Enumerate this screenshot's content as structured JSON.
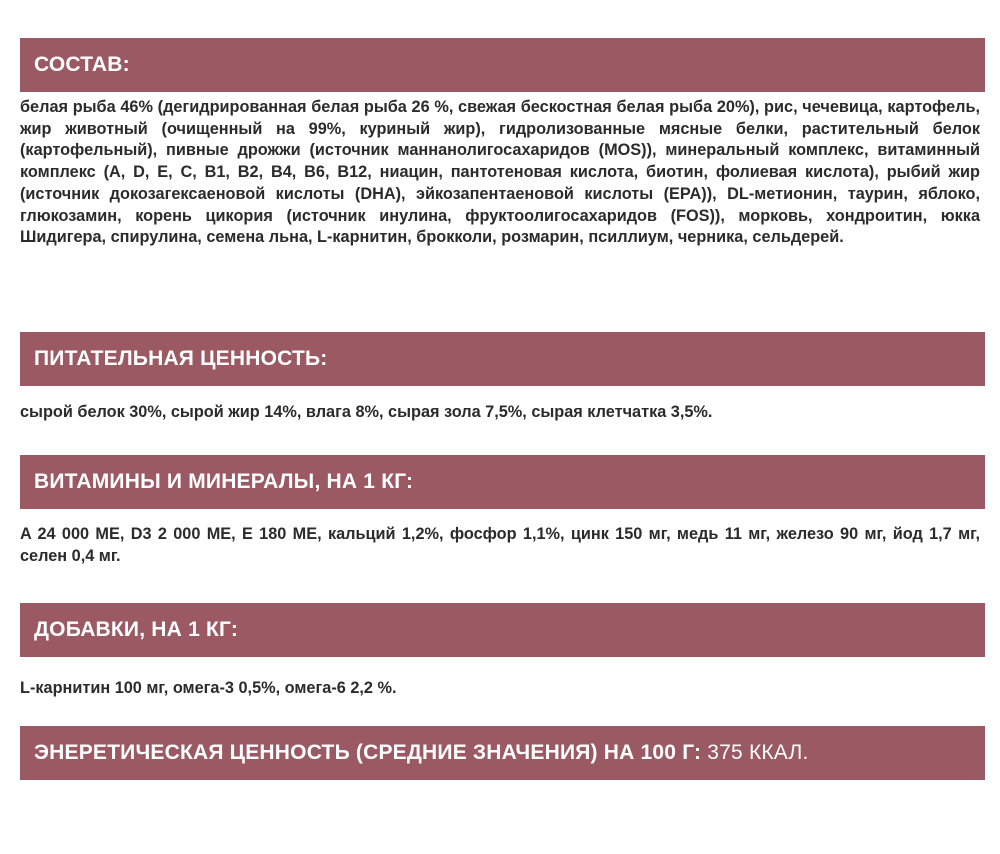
{
  "sections": [
    {
      "title": "СОСТАВ:",
      "text": "белая рыба 46% (дегидрированная белая рыба 26 %, свежая бескостная белая рыба 20%), рис, чечевица, картофель, жир животный (очищенный на 99%, куриный жир), гидролизованные мясные белки, растительный белок (картофельный), пивные дрожжи (источник маннанолигосахаридов (MOS)), минеральный комплекс, витаминный комплекс (A, D, E, C, B1, B2, B4, B6, B12, ниацин, пантотеновая кислота, биотин, фолиевая кислота), рыбий жир (источник докозагексаеновой кислоты (DHA), эйкозапентаеновой кислоты (EPA)), DL-метионин, таурин, яблоко, глюкозамин, корень цикория (источник инулина, фруктоолигосахаридов (FOS)), морковь, хондроитин, юкка Шидигера, спирулина, семена льна, L-карнитин, брокколи, розмарин, псиллиум, черника, сельдерей."
    },
    {
      "title": "ПИТАТЕЛЬНАЯ ЦЕННОСТЬ:",
      "text": "сырой белок 30%, сырой жир 14%, влага 8%, сырая зола 7,5%, сырая клетчатка 3,5%."
    },
    {
      "title": "ВИТАМИНЫ И МИНЕРАЛЫ, НА 1 КГ:",
      "text": "A 24 000 ME, D3 2 000 ME, E 180 ME, кальций 1,2%, фосфор 1,1%, цинк 150 мг, медь 11 мг, железо 90 мг, йод 1,7 мг, селен 0,4 мг."
    },
    {
      "title": "ДОБАВКИ, НА 1 КГ:",
      "text": "L-карнитин 100 мг, омега-3 0,5%, омега-6 2,2 %."
    }
  ],
  "energy": {
    "title": "ЭНЕРЕТИЧЕСКАЯ ЦЕННОСТЬ (СРЕДНИЕ ЗНАЧЕНИЯ) НА 100 Г:",
    "value": " 375 ККАЛ."
  },
  "colors": {
    "banner": "#9b5a63",
    "banner_text": "#ffffff",
    "body_text": "#2b2b2b"
  }
}
